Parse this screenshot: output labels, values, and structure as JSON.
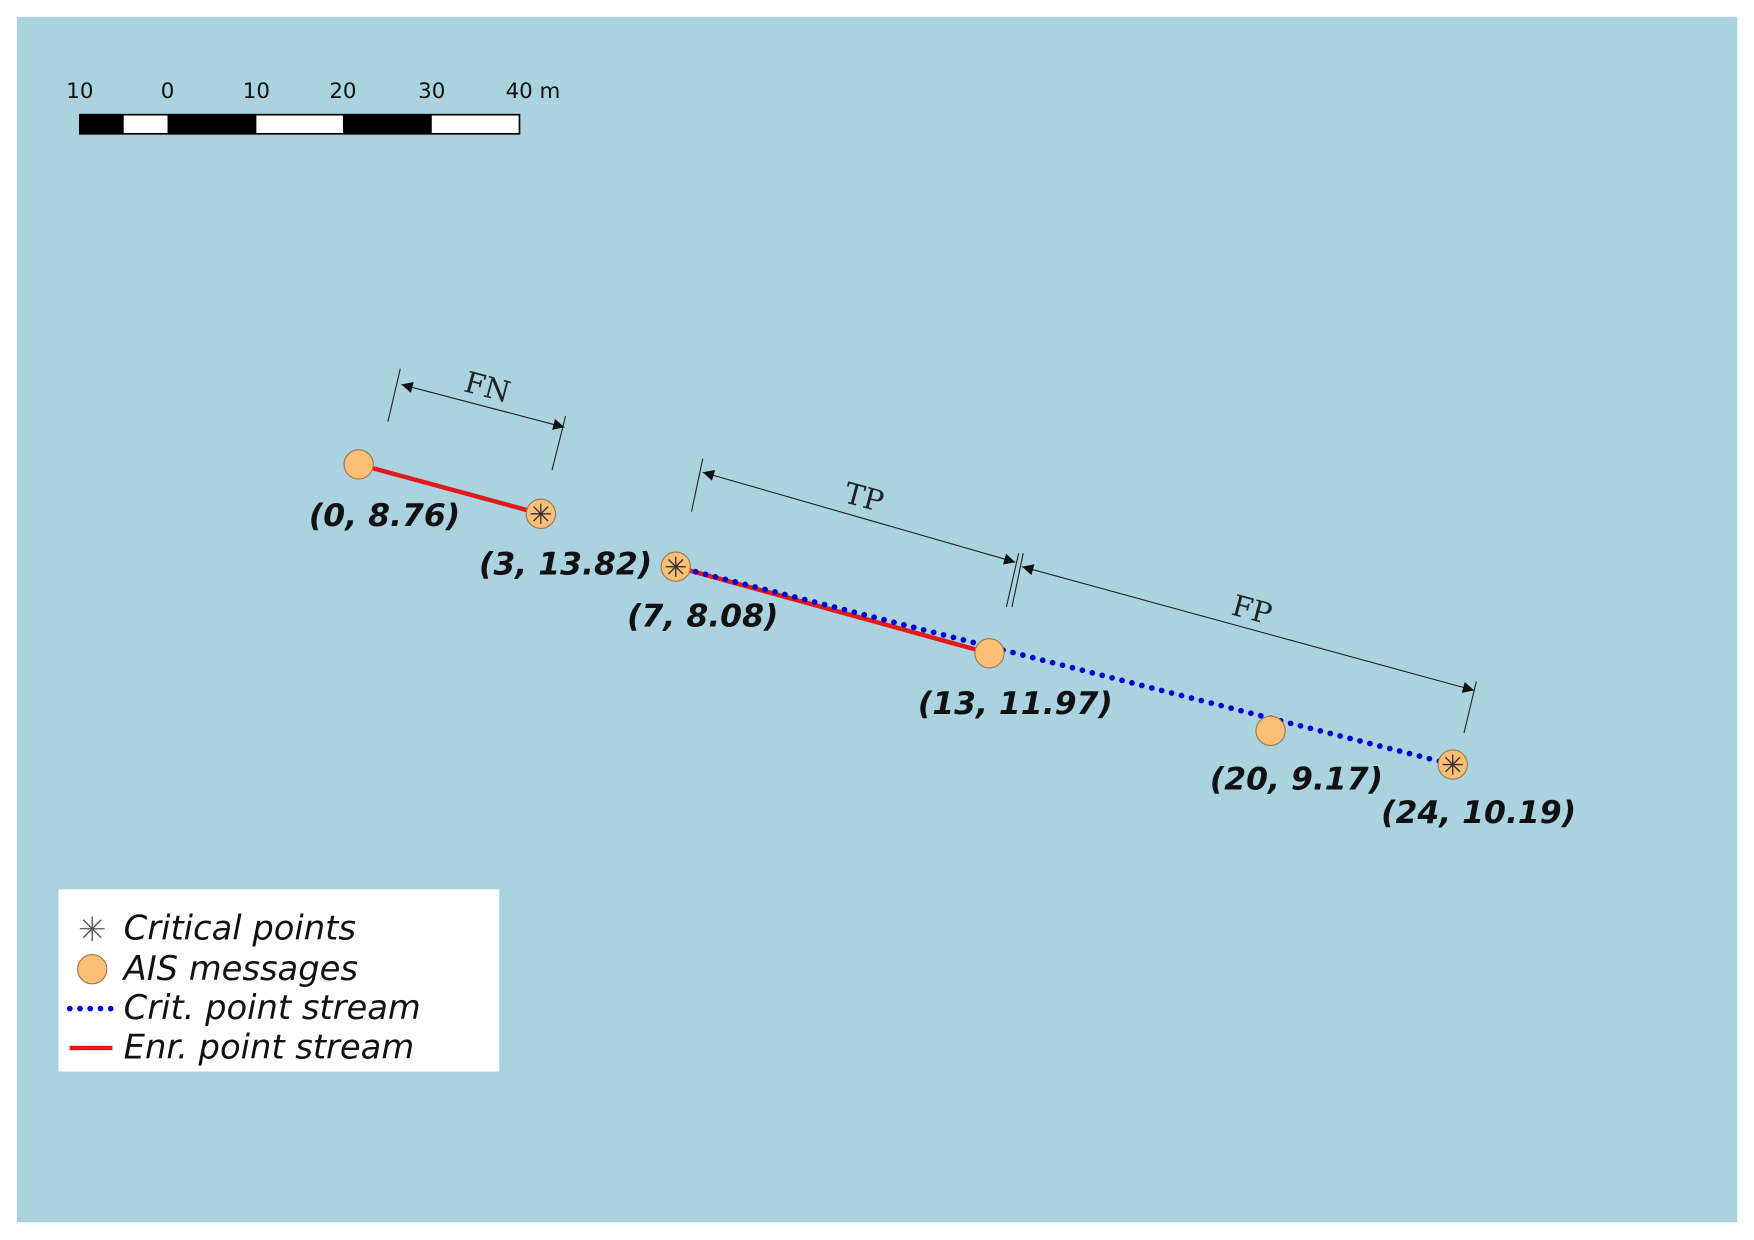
{
  "scale_bar": {
    "labels": [
      "10",
      "0",
      "10",
      "20",
      "30",
      "40 m"
    ]
  },
  "points": [
    {
      "label": "(0, 8.76)"
    },
    {
      "label": "(3, 13.82)"
    },
    {
      "label": "(7, 8.08)"
    },
    {
      "label": "(13, 11.97)"
    },
    {
      "label": "(20, 9.17)"
    },
    {
      "label": "(24, 10.19)"
    }
  ],
  "measures": {
    "fn": "FN",
    "tp": "TP",
    "fp": "FP"
  },
  "legend": [
    "Critical points",
    "AIS messages",
    "Crit. point stream",
    "Enr. point stream"
  ]
}
